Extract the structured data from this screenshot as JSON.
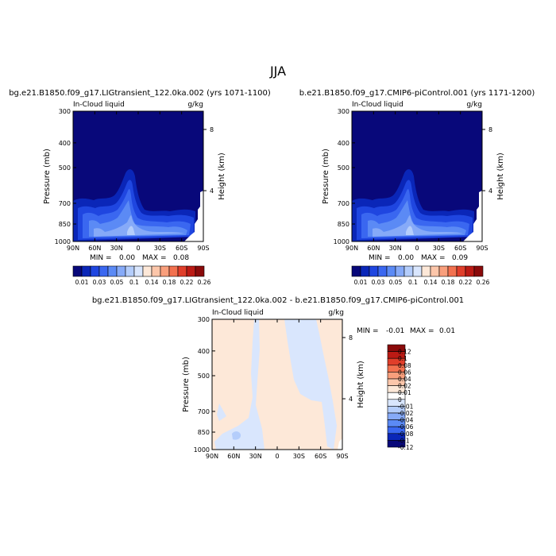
{
  "page_title": "JJA",
  "chart_data": [
    {
      "type": "heatmap",
      "title": "bg.e21.B1850.f09_g17.LIGtransient_122.0ka.002 (yrs 1071-1100)",
      "subtitle_left": "In-Cloud liquid",
      "subtitle_right": "g/kg",
      "ylabel": "Pressure (mb)",
      "ylabel_right": "Height (km)",
      "x_ticks": [
        "90N",
        "60N",
        "30N",
        "0",
        "30S",
        "60S",
        "90S"
      ],
      "y_ticks": [
        "300",
        "400",
        "500",
        "700",
        "850",
        "1000"
      ],
      "y_ticks_right": [
        "8",
        "4"
      ],
      "ylim": [
        1000,
        300
      ],
      "stats": {
        "min_label": "MIN =",
        "min": "0.00",
        "max_label": "MAX =",
        "max": "0.08"
      },
      "colorbar_labels": [
        "0.01",
        "0.03",
        "0.05",
        "0.1",
        "0.14",
        "0.18",
        "0.22",
        "0.26"
      ]
    },
    {
      "type": "heatmap",
      "title": "b.e21.B1850.f09_g17.CMIP6-piControl.001 (yrs 1171-1200)",
      "subtitle_left": "In-Cloud liquid",
      "subtitle_right": "g/kg",
      "ylabel": "Pressure (mb)",
      "ylabel_right": "Height (km)",
      "x_ticks": [
        "90N",
        "60N",
        "30N",
        "0",
        "30S",
        "60S",
        "90S"
      ],
      "y_ticks": [
        "300",
        "400",
        "500",
        "700",
        "850",
        "1000"
      ],
      "y_ticks_right": [
        "8",
        "4"
      ],
      "ylim": [
        1000,
        300
      ],
      "stats": {
        "min_label": "MIN =",
        "min": "0.00",
        "max_label": "MAX =",
        "max": "0.09"
      },
      "colorbar_labels": [
        "0.01",
        "0.03",
        "0.05",
        "0.1",
        "0.14",
        "0.18",
        "0.22",
        "0.26"
      ]
    },
    {
      "type": "heatmap",
      "title": "bg.e21.B1850.f09_g17.LIGtransient_122.0ka.002 - b.e21.B1850.f09_g17.CMIP6-piControl.001",
      "subtitle_left": "In-Cloud liquid",
      "subtitle_right": "g/kg",
      "ylabel": "Pressure (mb)",
      "ylabel_right": "Height (km)",
      "x_ticks": [
        "90N",
        "60N",
        "30N",
        "0",
        "30S",
        "60S",
        "90S"
      ],
      "y_ticks": [
        "300",
        "400",
        "500",
        "700",
        "850",
        "1000"
      ],
      "y_ticks_right": [
        "8",
        "4"
      ],
      "ylim": [
        1000,
        300
      ],
      "stats": {
        "min_label": "MIN =",
        "min": "-0.01",
        "max_label": "MAX =",
        "max": "0.01"
      },
      "colorbar_labels": [
        "0.12",
        "0.1",
        "0.08",
        "0.06",
        "0.04",
        "0.02",
        "0.01",
        "0",
        "-0.01",
        "-0.02",
        "-0.04",
        "-0.06",
        "-0.08",
        "-0.1",
        "-0.12"
      ]
    }
  ],
  "palettes": {
    "full": [
      "#08087a",
      "#0a26b8",
      "#1f46e0",
      "#3a67f0",
      "#5b8af5",
      "#86aaf8",
      "#b4cdfb",
      "#d9e6fd",
      "#fde8d8",
      "#fcc6aa",
      "#f99f7c",
      "#f2714f",
      "#e03e2a",
      "#bb1a14",
      "#8a0a0a"
    ],
    "diff": [
      "#8a0a0a",
      "#bb1a14",
      "#e03e2a",
      "#f2714f",
      "#f99f7c",
      "#fcc6aa",
      "#fde8d8",
      "#ffffff",
      "#d9e6fd",
      "#b4cdfb",
      "#86aaf8",
      "#5b8af5",
      "#3a67f0",
      "#0a26b8",
      "#08087a"
    ]
  }
}
